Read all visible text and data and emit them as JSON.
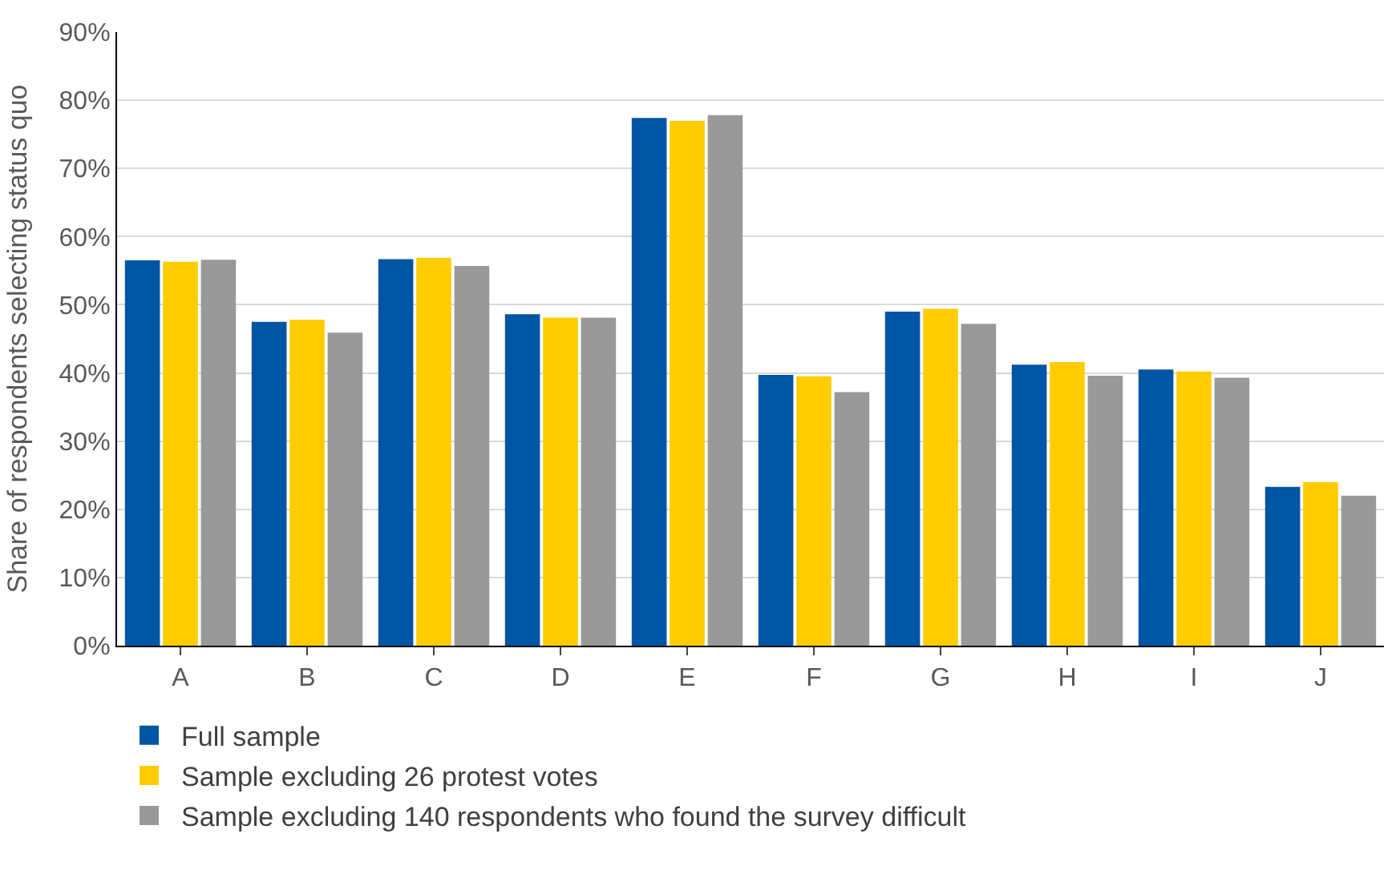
{
  "chart_data": {
    "type": "bar",
    "ylabel": "Share of respondents selecting status quo",
    "categories": [
      "A",
      "B",
      "C",
      "D",
      "E",
      "F",
      "G",
      "H",
      "I",
      "J"
    ],
    "series": [
      {
        "name": "Full sample",
        "color": "#0055a4",
        "values": [
          56.5,
          47.5,
          56.7,
          48.6,
          77.4,
          39.7,
          49.0,
          41.2,
          40.5,
          23.3
        ]
      },
      {
        "name": "Sample excluding 26 protest votes",
        "color": "#ffcc00",
        "values": [
          56.3,
          47.8,
          56.9,
          48.1,
          77.0,
          39.5,
          49.4,
          41.6,
          40.2,
          24.0
        ]
      },
      {
        "name": "Sample excluding 140 respondents who found the survey difficult",
        "color": "#999999",
        "values": [
          56.6,
          45.9,
          55.7,
          48.1,
          77.8,
          37.2,
          47.2,
          39.6,
          39.3,
          22.0
        ]
      }
    ],
    "ylim": [
      0,
      90
    ],
    "yticks": [
      {
        "value": 0,
        "label": "0%"
      },
      {
        "value": 10,
        "label": "10%"
      },
      {
        "value": 20,
        "label": "20%"
      },
      {
        "value": 30,
        "label": "30%"
      },
      {
        "value": 40,
        "label": "40%"
      },
      {
        "value": 50,
        "label": "50%"
      },
      {
        "value": 60,
        "label": "60%"
      },
      {
        "value": 70,
        "label": "70%"
      },
      {
        "value": 80,
        "label": "80%"
      },
      {
        "value": 90,
        "label": "90%"
      }
    ],
    "grid": "y",
    "legend": "bottom left"
  }
}
